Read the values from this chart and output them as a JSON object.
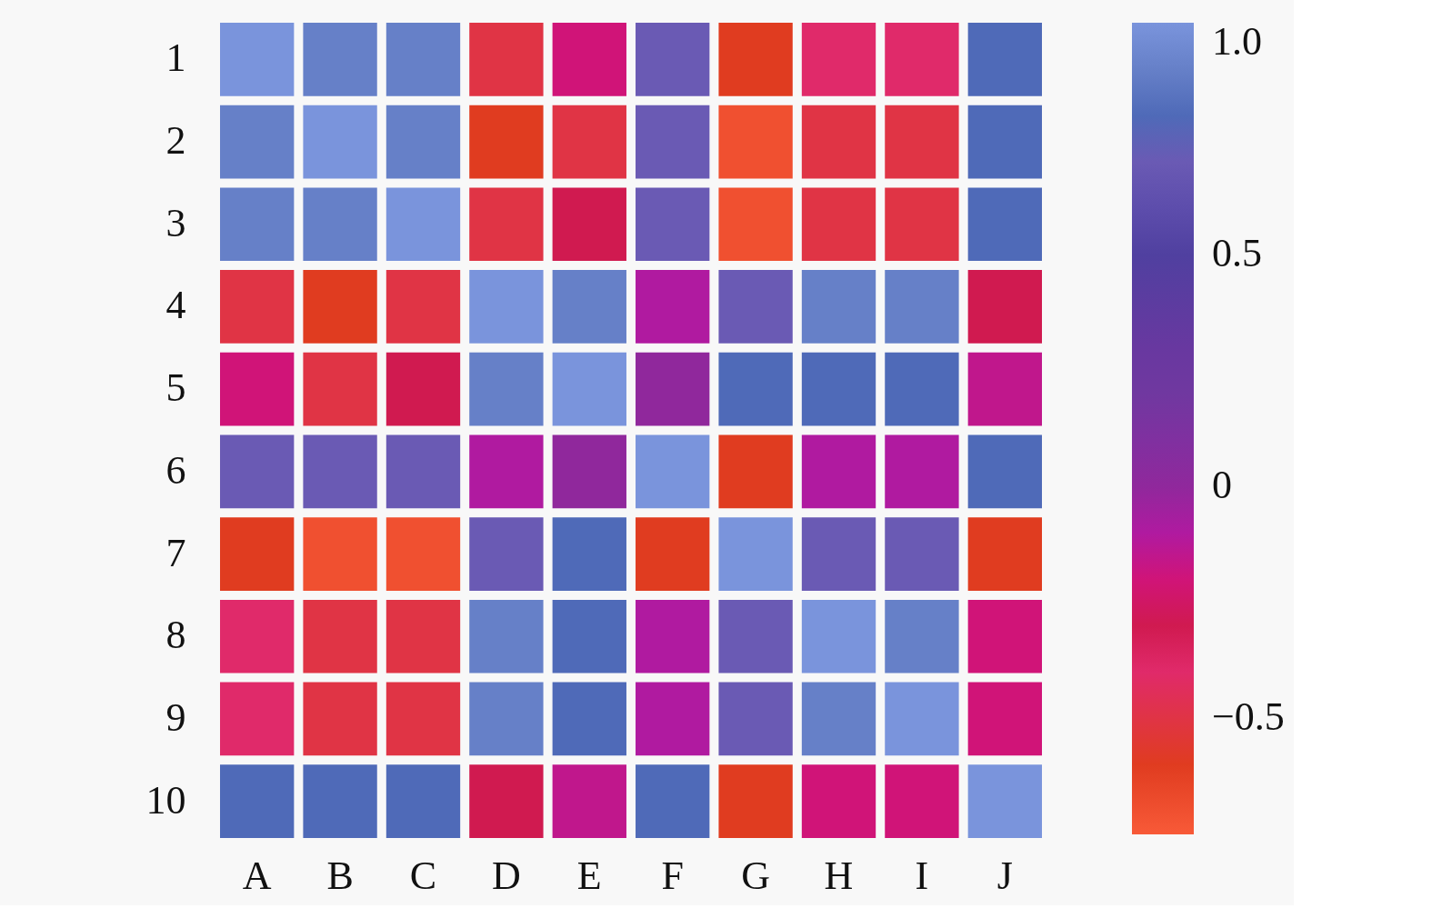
{
  "chart_data": {
    "type": "heatmap",
    "categories": [
      "A",
      "B",
      "C",
      "D",
      "E",
      "F",
      "G",
      "H",
      "I",
      "J"
    ],
    "y_categories": [
      "1",
      "2",
      "3",
      "4",
      "5",
      "6",
      "7",
      "8",
      "9",
      "10"
    ],
    "cells": [
      [
        1.0,
        0.9,
        0.9,
        -0.5,
        -0.2,
        0.7,
        -0.6,
        -0.4,
        -0.4,
        0.8
      ],
      [
        0.9,
        1.0,
        0.9,
        -0.6,
        -0.5,
        0.7,
        -0.7,
        -0.5,
        -0.5,
        0.8
      ],
      [
        0.9,
        0.9,
        1.0,
        -0.5,
        -0.3,
        0.7,
        -0.7,
        -0.5,
        -0.5,
        0.8
      ],
      [
        -0.5,
        -0.6,
        -0.5,
        1.0,
        0.9,
        -0.1,
        0.7,
        0.9,
        0.9,
        -0.3
      ],
      [
        -0.2,
        -0.5,
        -0.3,
        0.9,
        1.0,
        0.0,
        0.8,
        0.8,
        0.8,
        -0.15
      ],
      [
        0.7,
        0.7,
        0.7,
        -0.1,
        0.0,
        1.0,
        -0.6,
        -0.1,
        -0.1,
        0.8
      ],
      [
        -0.6,
        -0.7,
        -0.7,
        0.7,
        0.8,
        -0.6,
        1.0,
        0.7,
        0.7,
        -0.6
      ],
      [
        -0.4,
        -0.5,
        -0.5,
        0.9,
        0.8,
        -0.1,
        0.7,
        1.0,
        0.9,
        -0.2
      ],
      [
        -0.4,
        -0.5,
        -0.5,
        0.9,
        0.8,
        -0.1,
        0.7,
        0.9,
        1.0,
        -0.2
      ],
      [
        0.8,
        0.8,
        0.8,
        -0.3,
        -0.15,
        0.8,
        -0.6,
        -0.2,
        -0.2,
        1.0
      ]
    ],
    "clim": [
      -0.75,
      1.0
    ],
    "cticks": [
      {
        "value": 1.0,
        "label": "1.0"
      },
      0.5,
      0,
      {
        "value": -0.5,
        "label": "−0.5"
      }
    ]
  }
}
